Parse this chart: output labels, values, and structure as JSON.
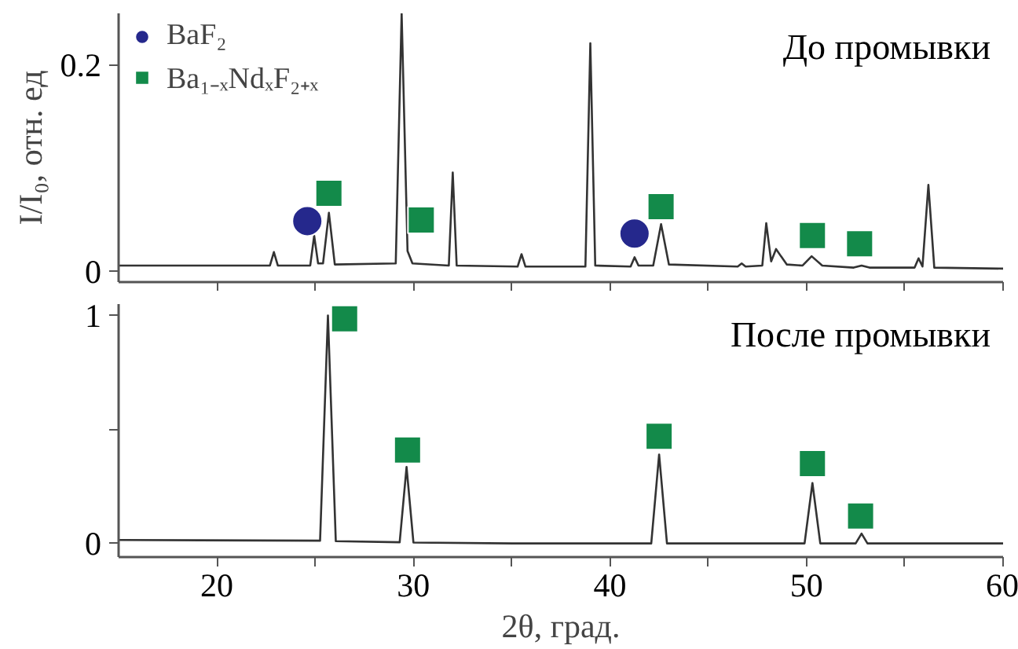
{
  "chart_data": [
    {
      "type": "line",
      "annotations": [
        "До промывки"
      ],
      "ylabel": "I/I₀, отн. ед",
      "xlim": [
        15,
        60
      ],
      "ylim": [
        -0.01,
        0.25
      ],
      "xticks": [
        {
          "value": 20,
          "label": null
        },
        {
          "value": 25,
          "label": null
        },
        {
          "value": 30,
          "label": null
        },
        {
          "value": 35,
          "label": null
        },
        {
          "value": 40,
          "label": null
        },
        {
          "value": 45,
          "label": null
        },
        {
          "value": 50,
          "label": null
        },
        {
          "value": 55,
          "label": null
        },
        {
          "value": 60,
          "label": null
        }
      ],
      "yticks": [
        0,
        0.2
      ],
      "tick_labels": "y",
      "grid": false,
      "legend": "top left",
      "series": [
        {
          "color": "#333333",
          "x": [
            15,
            22.7,
            22.9,
            23.1,
            24.75,
            24.95,
            25.15,
            25.4,
            25.7,
            26.0,
            29.1,
            29.4,
            29.7,
            29.95,
            31.8,
            32.0,
            32.2,
            35.3,
            35.5,
            35.7,
            38.75,
            39.0,
            39.25,
            41.05,
            41.25,
            41.45,
            42.2,
            42.6,
            43.0,
            46.5,
            46.7,
            46.9,
            47.75,
            47.95,
            48.2,
            48.45,
            48.7,
            49.0,
            49.8,
            50.26,
            50.8,
            52.4,
            52.8,
            53.2,
            55.5,
            55.7,
            55.9,
            56.2,
            56.5,
            60
          ],
          "values": [
            0.006,
            0.006,
            0.019,
            0.006,
            0.006,
            0.035,
            0.008,
            0.008,
            0.057,
            0.007,
            0.008,
            0.25,
            0.02,
            0.008,
            0.006,
            0.096,
            0.006,
            0.005,
            0.017,
            0.005,
            0.005,
            0.221,
            0.006,
            0.005,
            0.014,
            0.006,
            0.006,
            0.046,
            0.007,
            0.005,
            0.008,
            0.005,
            0.006,
            0.047,
            0.01,
            0.022,
            0.015,
            0.007,
            0.006,
            0.015,
            0.006,
            0.004,
            0.006,
            0.004,
            0.004,
            0.013,
            0.005,
            0.084,
            0.004,
            0.003
          ]
        },
        {
          "type": "scatter",
          "marker": "circle",
          "name": "BaF₂",
          "color": "#25288c",
          "x": [
            24.6,
            41.25
          ],
          "values": [
            0.049,
            0.037
          ]
        },
        {
          "type": "scatter",
          "marker": "square",
          "name": "Ba₁₋ₓNdₓF₂₊ₓ",
          "color": "#138a4a",
          "x": [
            25.7,
            30.4,
            42.6,
            50.3,
            52.7
          ],
          "values": [
            0.076,
            0.05,
            0.063,
            0.035,
            0.027
          ]
        }
      ]
    },
    {
      "type": "line",
      "annotations": [
        "После промывки"
      ],
      "xlabel": "2θ, град.",
      "xlim": [
        15,
        60
      ],
      "ylim": [
        -0.06,
        1.05
      ],
      "xticks": [
        20,
        {
          "value": 25,
          "label": null
        },
        30,
        {
          "value": 35,
          "label": null
        },
        40,
        {
          "value": 45,
          "label": null
        },
        50,
        {
          "value": 55,
          "label": null
        },
        60
      ],
      "yticks": [
        0,
        {
          "value": 0.5,
          "label": null
        },
        1
      ],
      "grid": false,
      "series": [
        {
          "color": "#333333",
          "x": [
            15,
            25.25,
            25.65,
            26.05,
            29.3,
            29.65,
            30.0,
            35,
            42.1,
            42.5,
            42.9,
            49.9,
            50.3,
            50.7,
            52.5,
            52.8,
            53.1,
            60
          ],
          "values": [
            0.015,
            0.012,
            1.0,
            0.01,
            0.005,
            0.335,
            0.004,
            0.0,
            0.0,
            0.39,
            0.0,
            0.0,
            0.265,
            0.0,
            0.0,
            0.043,
            0.0,
            0.0
          ]
        },
        {
          "type": "scatter",
          "marker": "square",
          "color": "#138a4a",
          "x": [
            26.5,
            29.7,
            42.5,
            50.3,
            52.75
          ],
          "values": [
            0.985,
            0.41,
            0.47,
            0.35,
            0.12
          ]
        }
      ]
    }
  ]
}
